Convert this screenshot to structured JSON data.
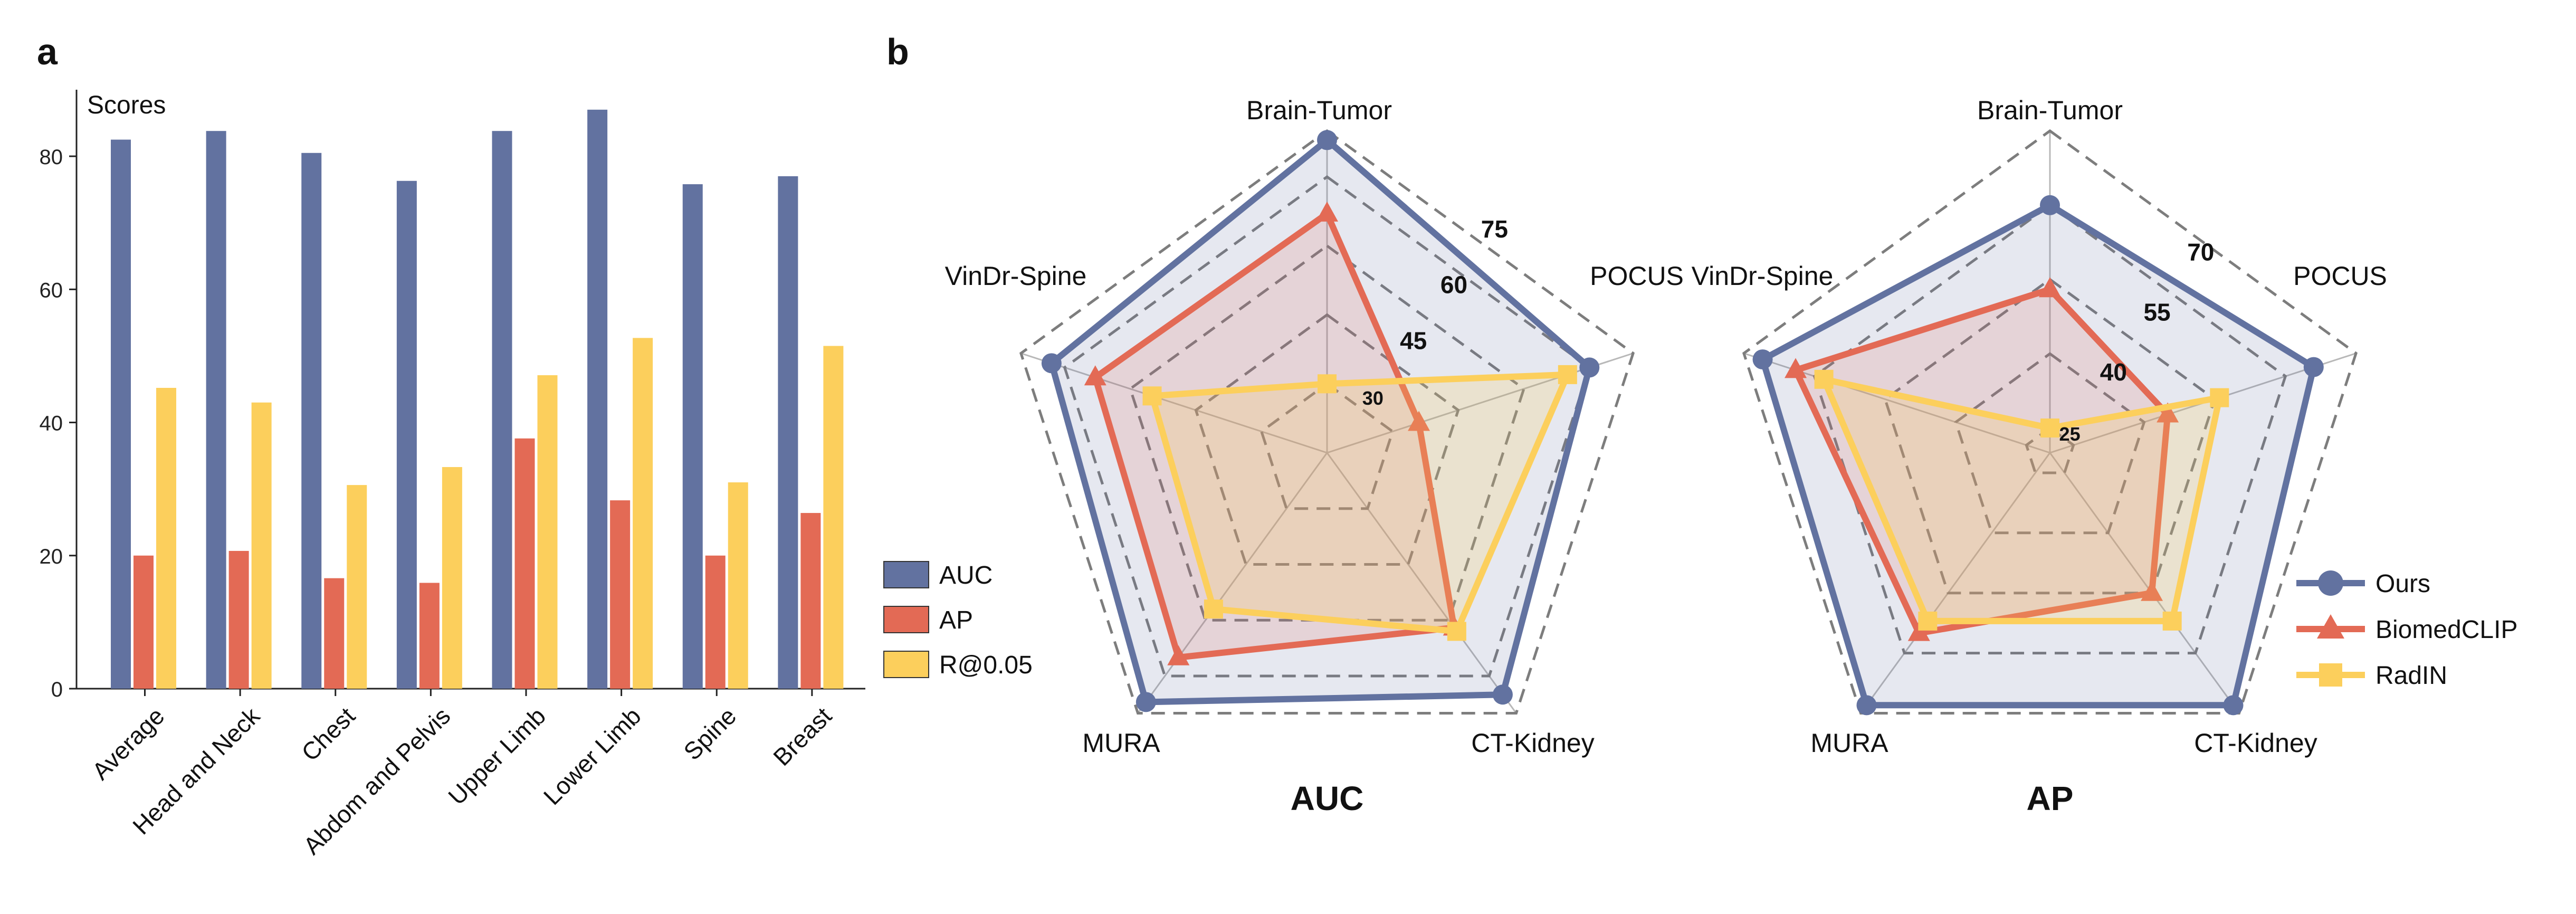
{
  "panels": {
    "a": "a",
    "b": "b"
  },
  "colors": {
    "auc": "#6272a0",
    "ap": "#e36a55",
    "r005": "#fccf5c",
    "axis": "#222222",
    "ring": "#7d7d7d",
    "spoke": "#b8b8b8"
  },
  "chart_data": [
    {
      "type": "bar",
      "ylabel": "Scores",
      "ylim": [
        0,
        90
      ],
      "yticks": [
        0,
        20,
        40,
        60,
        80
      ],
      "categories": [
        "Average",
        "Head and Neck",
        "Chest",
        "Abdom and Pelvis",
        "Upper Limb",
        "Lower Limb",
        "Spine",
        "Breast"
      ],
      "series": [
        {
          "name": "AUC",
          "color": "#6272a0",
          "values": [
            82.5,
            83.8,
            80.5,
            76.3,
            83.8,
            87.0,
            75.8,
            77.0
          ]
        },
        {
          "name": "AP",
          "color": "#e36a55",
          "values": [
            20.0,
            20.7,
            16.6,
            15.9,
            37.6,
            28.3,
            20.0,
            26.4
          ]
        },
        {
          "name": "R@0.05",
          "color": "#fccf5c",
          "values": [
            45.2,
            43.0,
            30.6,
            33.3,
            47.1,
            52.7,
            31.0,
            51.5
          ]
        }
      ],
      "grid": false,
      "legend": "right"
    },
    {
      "type": "radar",
      "title": "AUC",
      "axes": [
        "Brain-Tumor",
        "POCUS",
        "CT-Kidney",
        "MURA",
        "VinDr-Spine"
      ],
      "rings": [
        30,
        45,
        60,
        75
      ],
      "ring_label_axis": "POCUS",
      "range": [
        15,
        85
      ],
      "series": [
        {
          "name": "Ours",
          "values": [
            83,
            75,
            80,
            82,
            78
          ]
        },
        {
          "name": "BiomedCLIP",
          "values": [
            67,
            36,
            62,
            70,
            68
          ]
        },
        {
          "name": "RadIN",
          "values": [
            30,
            70,
            63,
            57,
            55
          ]
        }
      ]
    },
    {
      "type": "radar",
      "title": "AP",
      "axes": [
        "Brain-Tumor",
        "POCUS",
        "CT-Kidney",
        "MURA",
        "VinDr-Spine"
      ],
      "rings": [
        25,
        40,
        55,
        70
      ],
      "ring_label_axis": "POCUS",
      "range": [
        20,
        85
      ],
      "series": [
        {
          "name": "Ours",
          "values": [
            70,
            76,
            83,
            83,
            81
          ]
        },
        {
          "name": "BiomedCLIP",
          "values": [
            53,
            45,
            55,
            65,
            74
          ]
        },
        {
          "name": "RadIN",
          "values": [
            25,
            56,
            62,
            62,
            68
          ]
        }
      ],
      "legend": "right"
    }
  ]
}
